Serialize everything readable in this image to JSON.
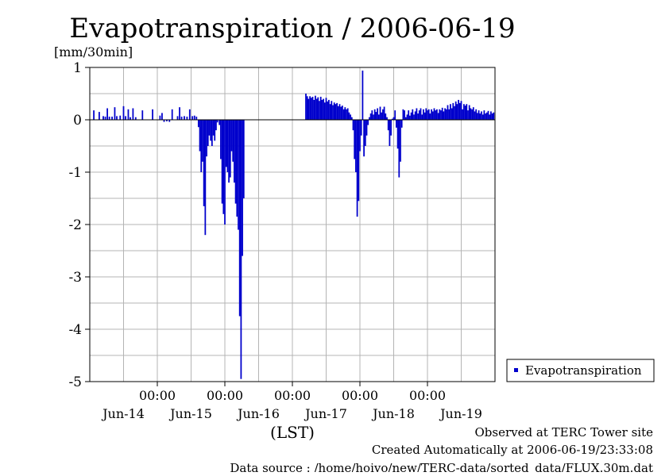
{
  "chart_data": {
    "type": "bar",
    "title": "Evapotranspiration / 2006-06-19",
    "unit_label": "[mm/30min]",
    "xlabel": "(LST)",
    "ylim": [
      -5,
      1
    ],
    "yticks": [
      "1",
      "0",
      "-1",
      "-2",
      "-3",
      "-4",
      "-5"
    ],
    "xlim_days": [
      0,
      6
    ],
    "time_labels": [
      "00:00",
      "00:00",
      "00:00",
      "00:00",
      "00:00"
    ],
    "day_labels": [
      "Jun-14",
      "Jun-15",
      "Jun-16",
      "Jun-17",
      "Jun-18",
      "Jun-19"
    ],
    "grid": true,
    "legend": {
      "position": "right",
      "entries": [
        "Evapotranspiration"
      ]
    },
    "series_color": "#0000cc",
    "series": [
      {
        "name": "Evapotranspiration",
        "points": [
          [
            0.06,
            0.18
          ],
          [
            0.14,
            0.15
          ],
          [
            0.2,
            0.07
          ],
          [
            0.23,
            0.06
          ],
          [
            0.26,
            0.22
          ],
          [
            0.29,
            0.06
          ],
          [
            0.33,
            0.06
          ],
          [
            0.37,
            0.24
          ],
          [
            0.4,
            0.07
          ],
          [
            0.45,
            0.08
          ],
          [
            0.5,
            0.26
          ],
          [
            0.53,
            0.07
          ],
          [
            0.57,
            0.2
          ],
          [
            0.6,
            0.05
          ],
          [
            0.64,
            0.22
          ],
          [
            0.68,
            0.05
          ],
          [
            0.78,
            0.18
          ],
          [
            0.93,
            0.2
          ],
          [
            1.04,
            0.08
          ],
          [
            1.07,
            0.13
          ],
          [
            1.1,
            -0.04
          ],
          [
            1.14,
            -0.03
          ],
          [
            1.18,
            -0.04
          ],
          [
            1.22,
            0.2
          ],
          [
            1.3,
            0.07
          ],
          [
            1.33,
            0.24
          ],
          [
            1.36,
            0.06
          ],
          [
            1.4,
            0.07
          ],
          [
            1.44,
            0.06
          ],
          [
            1.48,
            0.2
          ],
          [
            1.52,
            0.07
          ],
          [
            1.55,
            0.08
          ],
          [
            1.58,
            0.06
          ],
          [
            1.61,
            -0.14
          ],
          [
            1.63,
            -0.6
          ],
          [
            1.65,
            -1.0
          ],
          [
            1.67,
            -0.8
          ],
          [
            1.69,
            -1.65
          ],
          [
            1.71,
            -2.2
          ],
          [
            1.73,
            -0.7
          ],
          [
            1.75,
            -0.5
          ],
          [
            1.77,
            -0.3
          ],
          [
            1.79,
            -0.4
          ],
          [
            1.81,
            -0.5
          ],
          [
            1.83,
            -0.3
          ],
          [
            1.85,
            -0.4
          ],
          [
            1.87,
            -0.2
          ],
          [
            1.89,
            -0.05
          ],
          [
            1.92,
            -0.1
          ],
          [
            1.94,
            -0.75
          ],
          [
            1.96,
            -1.6
          ],
          [
            1.98,
            -1.8
          ],
          [
            2.0,
            -2.0
          ],
          [
            2.02,
            -0.9
          ],
          [
            2.04,
            -1.0
          ],
          [
            2.06,
            -1.2
          ],
          [
            2.08,
            -1.1
          ],
          [
            2.1,
            -0.6
          ],
          [
            2.12,
            -0.8
          ],
          [
            2.14,
            -1.2
          ],
          [
            2.16,
            -1.6
          ],
          [
            2.18,
            -1.85
          ],
          [
            2.2,
            -2.1
          ],
          [
            2.22,
            -3.75
          ],
          [
            2.24,
            -4.95
          ],
          [
            2.26,
            -2.6
          ],
          [
            2.28,
            -1.5
          ],
          [
            3.2,
            0.5
          ],
          [
            3.22,
            0.45
          ],
          [
            3.24,
            0.4
          ],
          [
            3.26,
            0.45
          ],
          [
            3.28,
            0.42
          ],
          [
            3.3,
            0.44
          ],
          [
            3.32,
            0.38
          ],
          [
            3.34,
            0.46
          ],
          [
            3.36,
            0.4
          ],
          [
            3.38,
            0.43
          ],
          [
            3.4,
            0.36
          ],
          [
            3.42,
            0.44
          ],
          [
            3.44,
            0.38
          ],
          [
            3.46,
            0.4
          ],
          [
            3.48,
            0.33
          ],
          [
            3.5,
            0.42
          ],
          [
            3.52,
            0.35
          ],
          [
            3.54,
            0.38
          ],
          [
            3.56,
            0.3
          ],
          [
            3.58,
            0.36
          ],
          [
            3.6,
            0.28
          ],
          [
            3.62,
            0.33
          ],
          [
            3.64,
            0.3
          ],
          [
            3.66,
            0.32
          ],
          [
            3.68,
            0.26
          ],
          [
            3.7,
            0.3
          ],
          [
            3.72,
            0.25
          ],
          [
            3.74,
            0.27
          ],
          [
            3.76,
            0.2
          ],
          [
            3.78,
            0.24
          ],
          [
            3.8,
            0.2
          ],
          [
            3.82,
            0.22
          ],
          [
            3.84,
            0.14
          ],
          [
            3.86,
            0.1
          ],
          [
            3.88,
            0.05
          ],
          [
            3.9,
            -0.2
          ],
          [
            3.92,
            -0.75
          ],
          [
            3.94,
            -1.0
          ],
          [
            3.96,
            -1.85
          ],
          [
            3.98,
            -1.55
          ],
          [
            4.0,
            -0.6
          ],
          [
            4.02,
            -0.3
          ],
          [
            4.04,
            0.94
          ],
          [
            4.06,
            -0.7
          ],
          [
            4.08,
            -0.5
          ],
          [
            4.1,
            -0.3
          ],
          [
            4.12,
            -0.1
          ],
          [
            4.14,
            0.05
          ],
          [
            4.16,
            0.12
          ],
          [
            4.18,
            0.18
          ],
          [
            4.2,
            0.1
          ],
          [
            4.22,
            0.2
          ],
          [
            4.24,
            0.15
          ],
          [
            4.26,
            0.22
          ],
          [
            4.28,
            0.1
          ],
          [
            4.3,
            0.25
          ],
          [
            4.32,
            0.14
          ],
          [
            4.34,
            0.2
          ],
          [
            4.36,
            0.25
          ],
          [
            4.38,
            0.12
          ],
          [
            4.4,
            0.05
          ],
          [
            4.42,
            -0.2
          ],
          [
            4.44,
            -0.5
          ],
          [
            4.46,
            -0.3
          ],
          [
            4.48,
            0.02
          ],
          [
            4.5,
            0.05
          ],
          [
            4.52,
            0.18
          ],
          [
            4.54,
            -0.15
          ],
          [
            4.56,
            -0.55
          ],
          [
            4.58,
            -1.1
          ],
          [
            4.6,
            -0.8
          ],
          [
            4.62,
            -0.15
          ],
          [
            4.64,
            0.2
          ],
          [
            4.66,
            0.18
          ],
          [
            4.68,
            0.05
          ],
          [
            4.7,
            0.1
          ],
          [
            4.72,
            0.18
          ],
          [
            4.74,
            0.08
          ],
          [
            4.76,
            0.14
          ],
          [
            4.78,
            0.2
          ],
          [
            4.8,
            0.1
          ],
          [
            4.82,
            0.16
          ],
          [
            4.84,
            0.22
          ],
          [
            4.86,
            0.12
          ],
          [
            4.88,
            0.18
          ],
          [
            4.9,
            0.22
          ],
          [
            4.92,
            0.1
          ],
          [
            4.94,
            0.2
          ],
          [
            4.96,
            0.14
          ],
          [
            4.98,
            0.22
          ],
          [
            5.0,
            0.18
          ],
          [
            5.02,
            0.2
          ],
          [
            5.04,
            0.12
          ],
          [
            5.06,
            0.2
          ],
          [
            5.08,
            0.16
          ],
          [
            5.1,
            0.22
          ],
          [
            5.12,
            0.18
          ],
          [
            5.14,
            0.2
          ],
          [
            5.16,
            0.13
          ],
          [
            5.18,
            0.2
          ],
          [
            5.2,
            0.18
          ],
          [
            5.22,
            0.23
          ],
          [
            5.24,
            0.16
          ],
          [
            5.26,
            0.22
          ],
          [
            5.28,
            0.2
          ],
          [
            5.3,
            0.28
          ],
          [
            5.32,
            0.2
          ],
          [
            5.34,
            0.3
          ],
          [
            5.36,
            0.22
          ],
          [
            5.38,
            0.32
          ],
          [
            5.4,
            0.26
          ],
          [
            5.42,
            0.35
          ],
          [
            5.44,
            0.3
          ],
          [
            5.46,
            0.38
          ],
          [
            5.48,
            0.32
          ],
          [
            5.5,
            0.36
          ],
          [
            5.52,
            0.2
          ],
          [
            5.54,
            0.3
          ],
          [
            5.56,
            0.27
          ],
          [
            5.58,
            0.3
          ],
          [
            5.6,
            0.18
          ],
          [
            5.62,
            0.28
          ],
          [
            5.64,
            0.22
          ],
          [
            5.66,
            0.2
          ],
          [
            5.68,
            0.24
          ],
          [
            5.7,
            0.16
          ],
          [
            5.72,
            0.2
          ],
          [
            5.74,
            0.13
          ],
          [
            5.76,
            0.18
          ],
          [
            5.78,
            0.12
          ],
          [
            5.8,
            0.16
          ],
          [
            5.82,
            0.1
          ],
          [
            5.84,
            0.18
          ],
          [
            5.86,
            0.12
          ],
          [
            5.88,
            0.14
          ],
          [
            5.9,
            0.17
          ],
          [
            5.92,
            0.1
          ],
          [
            5.94,
            0.16
          ],
          [
            5.96,
            0.12
          ],
          [
            5.98,
            0.14
          ]
        ]
      }
    ]
  },
  "footer": {
    "observed": "Observed at TERC Tower site",
    "created": "Created Automatically at 2006-06-19/23:33:08",
    "source": "Data source : /home/hoivo/new/TERC-data/sorted_data/FLUX.30m.dat"
  }
}
